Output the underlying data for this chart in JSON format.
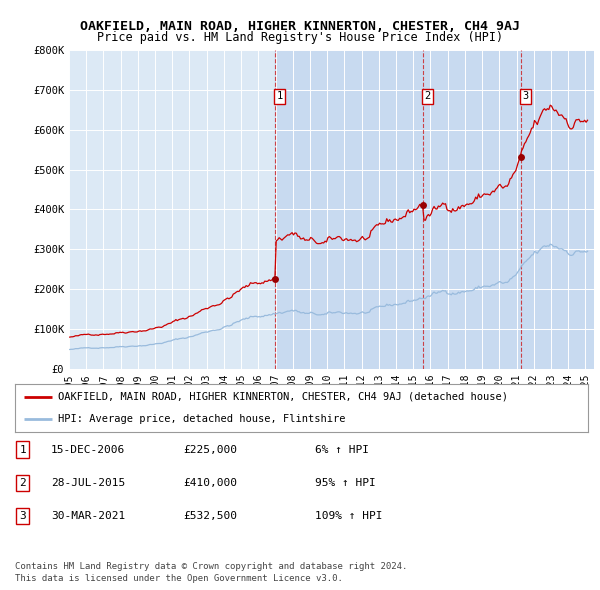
{
  "title": "OAKFIELD, MAIN ROAD, HIGHER KINNERTON, CHESTER, CH4 9AJ",
  "subtitle": "Price paid vs. HM Land Registry's House Price Index (HPI)",
  "ylim": [
    0,
    800000
  ],
  "yticks": [
    0,
    100000,
    200000,
    300000,
    400000,
    500000,
    600000,
    700000,
    800000
  ],
  "ytick_labels": [
    "£0",
    "£100K",
    "£200K",
    "£300K",
    "£400K",
    "£500K",
    "£600K",
    "£700K",
    "£800K"
  ],
  "plot_bg_color": "#dce9f5",
  "shade_bg_color": "#c8daf0",
  "grid_color": "#ffffff",
  "sale_color": "#cc0000",
  "hpi_color": "#99bbdd",
  "marker_color": "#990000",
  "vline_color": "#cc0000",
  "sale_dates_dec": [
    2006.958,
    2015.558,
    2021.247
  ],
  "sale_prices": [
    225000,
    410000,
    532500
  ],
  "sale_labels": [
    "1",
    "2",
    "3"
  ],
  "footer_text": "Contains HM Land Registry data © Crown copyright and database right 2024.\nThis data is licensed under the Open Government Licence v3.0.",
  "legend_entries": [
    "OAKFIELD, MAIN ROAD, HIGHER KINNERTON, CHESTER, CH4 9AJ (detached house)",
    "HPI: Average price, detached house, Flintshire"
  ],
  "table_data": [
    [
      "1",
      "15-DEC-2006",
      "£225,000",
      "6% ↑ HPI"
    ],
    [
      "2",
      "28-JUL-2015",
      "£410,000",
      "95% ↑ HPI"
    ],
    [
      "3",
      "30-MAR-2021",
      "£532,500",
      "109% ↑ HPI"
    ]
  ],
  "xmin": 1995.0,
  "xmax": 2025.5,
  "xtick_years": [
    1995,
    1996,
    1997,
    1998,
    1999,
    2000,
    2001,
    2002,
    2003,
    2004,
    2005,
    2006,
    2007,
    2008,
    2009,
    2010,
    2011,
    2012,
    2013,
    2014,
    2015,
    2016,
    2017,
    2018,
    2019,
    2020,
    2021,
    2022,
    2023,
    2024,
    2025
  ]
}
